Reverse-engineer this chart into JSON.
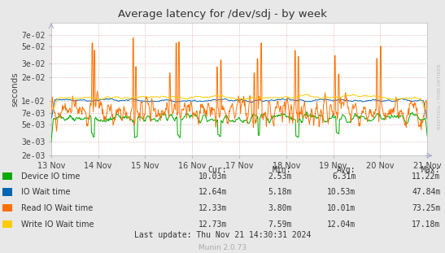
{
  "title": "Average latency for /dev/sdj - by week",
  "ylabel": "seconds",
  "background_color": "#e8e8e8",
  "plot_bg_color": "#ffffff",
  "grid_color": "#e0a0a0",
  "title_color": "#333333",
  "x_tick_labels": [
    "13 Nov",
    "14 Nov",
    "15 Nov",
    "16 Nov",
    "17 Nov",
    "18 Nov",
    "19 Nov",
    "20 Nov",
    "21 Nov"
  ],
  "ytick_vals": [
    0.002,
    0.003,
    0.005,
    0.007,
    0.01,
    0.02,
    0.03,
    0.05,
    0.07
  ],
  "ytick_labels": [
    "2e-03",
    "3e-03",
    "5e-03",
    "7e-03",
    "1e-02",
    "2e-02",
    "3e-02",
    "5e-02",
    "7e-02"
  ],
  "legend": [
    {
      "label": "Device IO time",
      "color": "#00aa00"
    },
    {
      "label": "IO Wait time",
      "color": "#0066b3"
    },
    {
      "label": "Read IO Wait time",
      "color": "#ff7000"
    },
    {
      "label": "Write IO Wait time",
      "color": "#ffcc00"
    }
  ],
  "stats_headers": [
    "Cur:",
    "Min:",
    "Avg:",
    "Max:"
  ],
  "stats_rows": [
    [
      "Device IO time",
      "10.03m",
      "2.53m",
      "6.31m",
      "11.22m"
    ],
    [
      "IO Wait time",
      "12.64m",
      "5.18m",
      "10.53m",
      "47.84m"
    ],
    [
      "Read IO Wait time",
      "12.33m",
      "3.80m",
      "10.01m",
      "73.25m"
    ],
    [
      "Write IO Wait time",
      "12.73m",
      "7.59m",
      "12.04m",
      "17.18m"
    ]
  ],
  "last_update": "Last update: Thu Nov 21 14:30:31 2024",
  "munin_version": "Munin 2.0.73",
  "watermark": "RRDTOOL / TOBI OETIKER",
  "n_points": 700
}
